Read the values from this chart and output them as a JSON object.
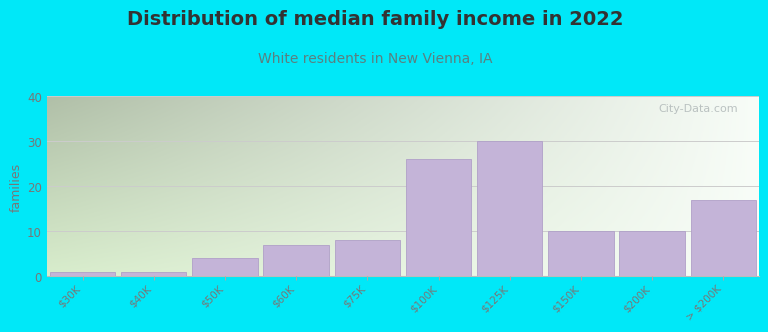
{
  "title": "Distribution of median family income in 2022",
  "subtitle": "White residents in New Vienna, IA",
  "ylabel": "families",
  "categories": [
    "$30K",
    "$40K",
    "$50K",
    "$60K",
    "$75K",
    "$100K",
    "$125K",
    "$150K",
    "$200K",
    "> $200K"
  ],
  "values": [
    1,
    1,
    4,
    7,
    8,
    26,
    30,
    10,
    10,
    17
  ],
  "bar_color": "#c4b4d8",
  "bar_edge_color": "#b0a0c8",
  "ylim": [
    0,
    40
  ],
  "yticks": [
    0,
    10,
    20,
    30,
    40
  ],
  "background_outer": "#00e8f8",
  "plot_bg_left_color": "#d8edcc",
  "plot_bg_right_color": "#f0f5f0",
  "plot_bg_top_color": "#f8fdf8",
  "grid_color": "#cccccc",
  "title_fontsize": 14,
  "subtitle_fontsize": 10,
  "subtitle_color": "#5a8080",
  "title_color": "#333333",
  "watermark": "City-Data.com",
  "tick_label_color": "#777777",
  "ylabel_color": "#777777"
}
